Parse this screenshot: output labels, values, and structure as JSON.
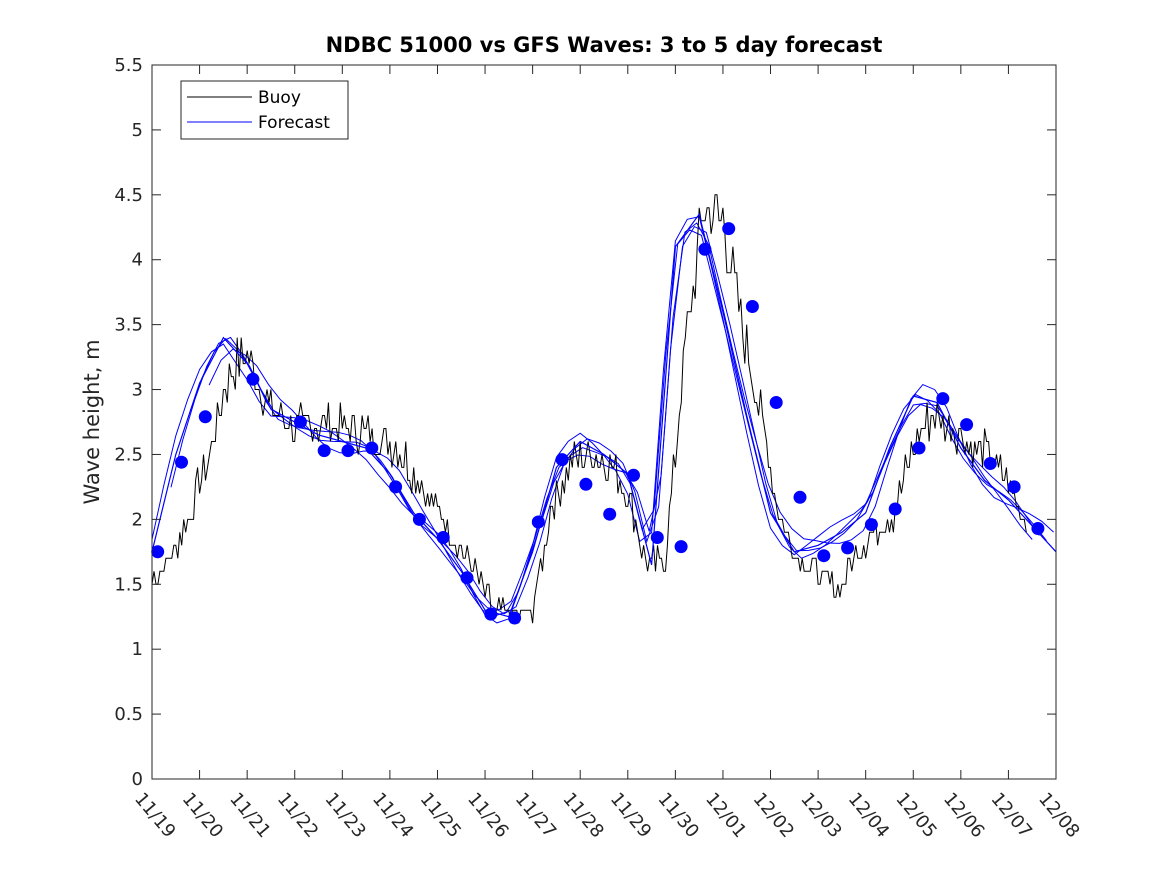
{
  "chart_data": {
    "type": "line",
    "title": "NDBC 51000 vs GFS Waves: 3 to 5 day forecast",
    "xlabel": "",
    "ylabel": "Wave height, m",
    "xlim": [
      0,
      19
    ],
    "ylim": [
      0,
      5.5
    ],
    "grid": false,
    "legend_position": "top-left",
    "x_tick_labels": [
      "11/19",
      "11/20",
      "11/21",
      "11/22",
      "11/23",
      "11/24",
      "11/25",
      "11/26",
      "11/27",
      "11/28",
      "11/29",
      "11/30",
      "12/01",
      "12/02",
      "12/03",
      "12/04",
      "12/05",
      "12/06",
      "12/07",
      "12/08"
    ],
    "y_ticks": [
      0,
      0.5,
      1,
      1.5,
      2,
      2.5,
      3,
      3.5,
      4,
      4.5,
      5,
      5.5
    ],
    "y_tick_labels": [
      "0",
      "0.5",
      "1",
      "1.5",
      "2",
      "2.5",
      "3",
      "3.5",
      "4",
      "4.5",
      "5",
      "5.5"
    ],
    "colors": {
      "buoy": "#000000",
      "forecast": "#0000ff",
      "axis": "#262626"
    },
    "series": [
      {
        "name": "Buoy",
        "x": [
          0,
          0.4,
          0.8,
          1.2,
          1.6,
          2,
          2.4,
          2.8,
          3.2,
          3.6,
          4,
          4.4,
          4.8,
          5.2,
          5.6,
          6,
          6.4,
          6.8,
          7.2,
          7.6,
          8,
          8.4,
          8.8,
          9.2,
          9.6,
          10,
          10.4,
          10.8,
          11.2,
          11.6,
          12,
          12.4,
          12.8,
          13.2,
          13.6,
          14,
          14.4,
          14.8,
          15.2,
          15.6,
          16,
          16.4,
          16.8,
          17.2,
          17.6,
          18,
          18.4
        ],
        "values": [
          1.55,
          1.7,
          2.05,
          2.5,
          3.1,
          3.3,
          2.9,
          2.75,
          2.7,
          2.75,
          2.7,
          2.7,
          2.6,
          2.55,
          2.3,
          2.05,
          1.85,
          1.6,
          1.3,
          1.25,
          1.3,
          2.1,
          2.45,
          2.5,
          2.45,
          2.2,
          1.65,
          1.7,
          3.3,
          4.4,
          4.3,
          3.5,
          2.8,
          2.0,
          1.7,
          1.6,
          1.45,
          1.75,
          1.9,
          2.05,
          2.55,
          2.8,
          2.75,
          2.55,
          2.5,
          2.25,
          1.95
        ],
        "noise": 0.15
      },
      {
        "name": "Forecast",
        "x": [
          0,
          0.5,
          1,
          1.5,
          2,
          2.5,
          3,
          3.5,
          4,
          4.5,
          5,
          5.5,
          6,
          6.5,
          7,
          7.5,
          8,
          8.5,
          9,
          9.5,
          10,
          10.5,
          11,
          11.5,
          12,
          12.5,
          13,
          13.5,
          14,
          14.5,
          15,
          15.5,
          16,
          16.5,
          17,
          17.5,
          18,
          18.5,
          19
        ],
        "values": [
          1.75,
          2.5,
          3.05,
          3.4,
          3.2,
          2.85,
          2.75,
          2.65,
          2.6,
          2.55,
          2.35,
          2.05,
          1.85,
          1.6,
          1.3,
          1.25,
          1.75,
          2.4,
          2.6,
          2.5,
          2.35,
          1.65,
          4.1,
          4.35,
          3.6,
          2.8,
          2.05,
          1.75,
          1.8,
          1.9,
          2.05,
          2.55,
          2.95,
          2.9,
          2.55,
          2.3,
          2.15,
          1.95,
          1.75
        ]
      }
    ],
    "forecast_markers": [
      {
        "x": 0.12,
        "y": 1.75
      },
      {
        "x": 0.62,
        "y": 2.44
      },
      {
        "x": 1.12,
        "y": 2.79
      },
      {
        "x": 2.12,
        "y": 3.08
      },
      {
        "x": 3.12,
        "y": 2.75
      },
      {
        "x": 3.62,
        "y": 2.53
      },
      {
        "x": 4.12,
        "y": 2.53
      },
      {
        "x": 4.62,
        "y": 2.55
      },
      {
        "x": 5.12,
        "y": 2.25
      },
      {
        "x": 5.62,
        "y": 2.0
      },
      {
        "x": 6.12,
        "y": 1.86
      },
      {
        "x": 6.62,
        "y": 1.55
      },
      {
        "x": 7.12,
        "y": 1.27
      },
      {
        "x": 7.62,
        "y": 1.24
      },
      {
        "x": 8.12,
        "y": 1.98
      },
      {
        "x": 8.62,
        "y": 2.46
      },
      {
        "x": 9.12,
        "y": 2.27
      },
      {
        "x": 9.62,
        "y": 2.04
      },
      {
        "x": 10.12,
        "y": 2.34
      },
      {
        "x": 10.62,
        "y": 1.86
      },
      {
        "x": 11.12,
        "y": 1.79
      },
      {
        "x": 11.62,
        "y": 4.08
      },
      {
        "x": 12.12,
        "y": 4.24
      },
      {
        "x": 12.62,
        "y": 3.64
      },
      {
        "x": 13.12,
        "y": 2.9
      },
      {
        "x": 13.62,
        "y": 2.17
      },
      {
        "x": 14.12,
        "y": 1.72
      },
      {
        "x": 14.62,
        "y": 1.78
      },
      {
        "x": 15.12,
        "y": 1.96
      },
      {
        "x": 15.62,
        "y": 2.08
      },
      {
        "x": 16.12,
        "y": 2.55
      },
      {
        "x": 16.62,
        "y": 2.93
      },
      {
        "x": 17.12,
        "y": 2.73
      },
      {
        "x": 17.62,
        "y": 2.43
      },
      {
        "x": 18.12,
        "y": 2.25
      },
      {
        "x": 18.62,
        "y": 1.93
      }
    ],
    "forecast_run_offsets": [
      0.08,
      -0.06,
      0.04,
      -0.1
    ]
  }
}
